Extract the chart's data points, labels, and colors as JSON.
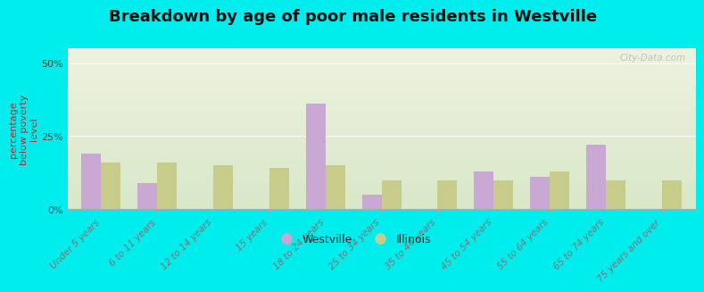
{
  "title": "Breakdown by age of poor male residents in Westville",
  "categories": [
    "Under 5 years",
    "6 to 11 years",
    "12 to 14 years",
    "15 years",
    "18 to 24 years",
    "25 to 34 years",
    "35 to 44 years",
    "45 to 54 years",
    "55 to 64 years",
    "65 to 74 years",
    "75 years and over"
  ],
  "westville": [
    19,
    9,
    0,
    0,
    36,
    5,
    0,
    13,
    11,
    22,
    0
  ],
  "illinois": [
    16,
    16,
    15,
    14,
    15,
    10,
    10,
    10,
    13,
    10,
    10
  ],
  "westville_color": "#c9a8d4",
  "illinois_color": "#c8cc8a",
  "bg_outer": "#00eded",
  "ylabel": "percentage\nbelow poverty\nlevel",
  "ylim": [
    0,
    55
  ],
  "yticks": [
    0,
    25,
    50
  ],
  "ytick_labels": [
    "0%",
    "25%",
    "50%"
  ],
  "bar_width": 0.35,
  "title_fontsize": 13,
  "axis_label_fontsize": 8,
  "tick_label_fontsize": 7.5,
  "watermark": "City-Data.com"
}
